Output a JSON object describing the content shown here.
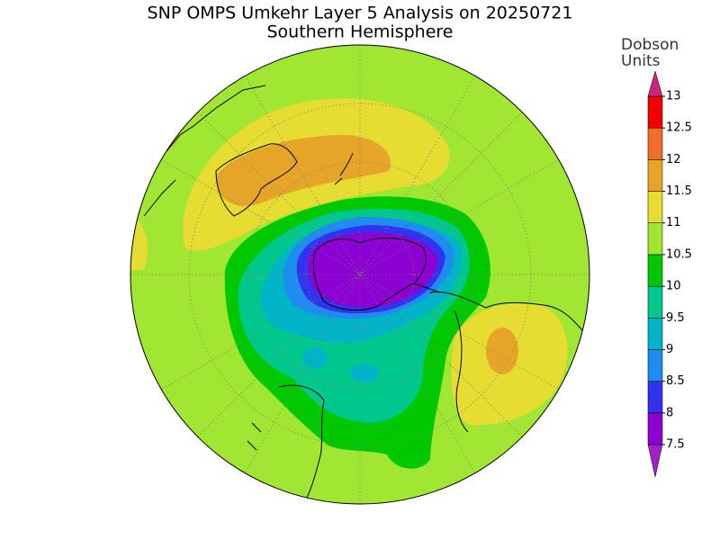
{
  "header": {
    "title": "SNP OMPS Umkehr Layer 5 Analysis on 20250721",
    "subtitle": "Southern Hemisphere"
  },
  "colorbar": {
    "title_lines": [
      "Dobson",
      "Units"
    ],
    "levels": [
      7.5,
      8,
      8.5,
      9,
      9.5,
      10,
      10.5,
      11,
      11.5,
      12,
      12.5,
      13
    ],
    "colors": [
      "#8c00d2",
      "#3232f0",
      "#1e8cf0",
      "#00b4c8",
      "#00c88c",
      "#00c800",
      "#a0e632",
      "#e6dc32",
      "#e6a528",
      "#f06e28",
      "#f00000"
    ],
    "under_color": "#a020c8",
    "over_color": "#c8287a"
  }
}
